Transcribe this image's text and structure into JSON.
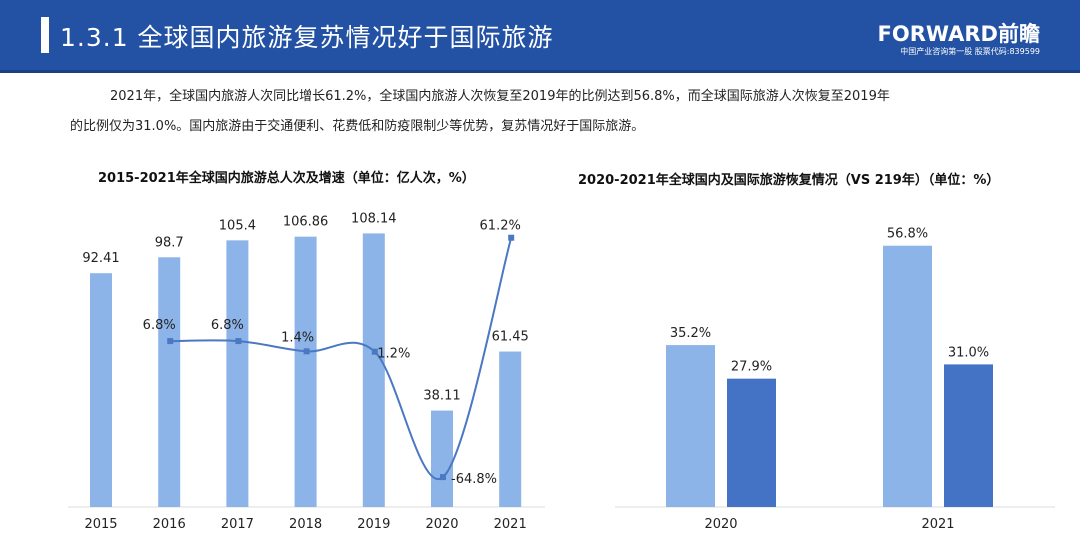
{
  "header": {
    "title": "1.3.1 全球国内旅游复苏情况好于国际旅游",
    "logo": "FORWARD前瞻",
    "logo_sub": "中国产业咨询第一股 股票代码:839599"
  },
  "paragraph": {
    "line1": "2021年，全球国内旅游人次同比增长61.2%，全球国内旅游人次恢复至2019年的比例达到56.8%，而全球国际旅游人次恢复至2019年",
    "line2": "的比例仅为31.0%。国内旅游由于交通便利、花费低和防疫限制少等优势，复苏情况好于国际旅游。"
  },
  "colors": {
    "light": "#8db4e8",
    "dark": "#4472c4",
    "line": "#4a78c2"
  },
  "chart_data": [
    {
      "type": "bar",
      "title": "2015-2021年全球国内旅游总人次及增速（单位：亿人次，%）",
      "categories": [
        "2015",
        "2016",
        "2017",
        "2018",
        "2019",
        "2020",
        "2021"
      ],
      "series": [
        {
          "name": "总人次",
          "type": "bar",
          "values": [
            92.41,
            98.7,
            105.4,
            106.86,
            108.14,
            38.11,
            61.45
          ],
          "labels": [
            "92.41",
            "98.7",
            "105.4",
            "106.86",
            "108.14",
            "38.11",
            "61.45"
          ]
        },
        {
          "name": "增速",
          "type": "line",
          "values": [
            null,
            6.8,
            6.8,
            1.4,
            1.2,
            -64.8,
            61.2
          ],
          "labels": [
            "",
            "6.8%",
            "6.8%",
            "1.4%",
            "1.2%",
            "-64.8%",
            "61.2%"
          ]
        }
      ]
    },
    {
      "type": "bar",
      "title": "2020-2021年全球国内及国际旅游恢复情况（VS 219年）（单位：%）",
      "categories": [
        "2020",
        "2021"
      ],
      "series": [
        {
          "name": "国内",
          "values": [
            35.2,
            56.8
          ],
          "labels": [
            "35.2%",
            "56.8%"
          ]
        },
        {
          "name": "国际",
          "values": [
            27.9,
            31.0
          ],
          "labels": [
            "27.9%",
            "31.0%"
          ]
        }
      ]
    }
  ]
}
